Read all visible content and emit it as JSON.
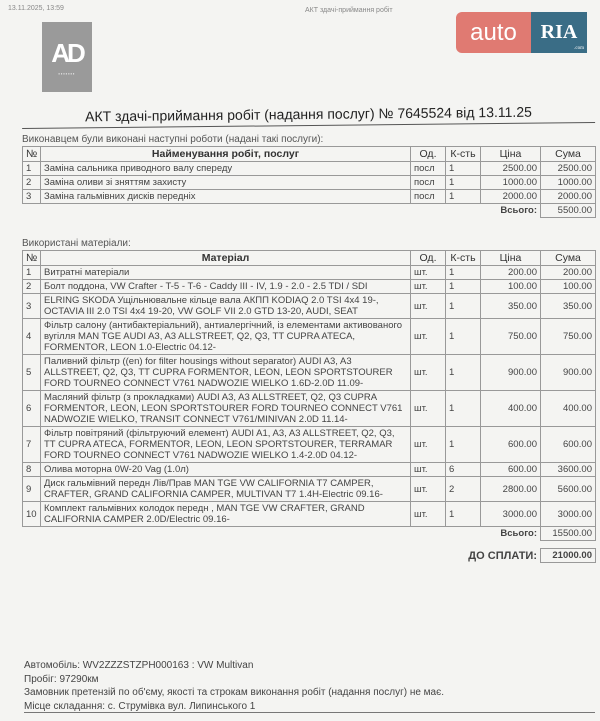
{
  "print_header": {
    "datetime": "13.11.2025, 13:59",
    "doc_name": "АКТ здачі-приймання робіт"
  },
  "logos": {
    "company": "AD",
    "autoria_left": "auto",
    "autoria_right": "RIA",
    "autoria_domain": ".com",
    "brand_colors": {
      "auto": "#e07a72",
      "ria": "#3a6d86"
    }
  },
  "title": "АКТ здачі-приймання робіт (надання послуг) № 7645524 від 13.11.25",
  "works": {
    "caption": "Виконавцем були виконані наступні роботи (надані такі послуги):",
    "headers": [
      "№",
      "Найменування робіт, послуг",
      "Од.",
      "К-сть",
      "Ціна",
      "Сума"
    ],
    "rows": [
      [
        "1",
        "Заміна сальника приводного валу спереду",
        "посл",
        "1",
        "2500.00",
        "2500.00"
      ],
      [
        "2",
        "Заміна оливи зі зняттям захисту",
        "посл",
        "1",
        "1000.00",
        "1000.00"
      ],
      [
        "3",
        "Заміна гальмівних дисків передніх",
        "посл",
        "1",
        "2000.00",
        "2000.00"
      ]
    ],
    "total_label": "Всього:",
    "total": "5500.00"
  },
  "materials": {
    "caption": "Використані матеріали:",
    "headers": [
      "№",
      "Матеріал",
      "Од.",
      "К-сть",
      "Ціна",
      "Сума"
    ],
    "rows": [
      [
        "1",
        "Витратні матеріали",
        "шт.",
        "1",
        "200.00",
        "200.00"
      ],
      [
        "2",
        "Болт поддона, VW Crafter - T-5 - T-6 - Caddy III - IV, 1.9 - 2.0 - 2.5 TDI / SDI",
        "шт.",
        "1",
        "100.00",
        "100.00"
      ],
      [
        "3",
        "ELRING SKODA Ущільнювальне кільце вала АКПП KODIAQ 2.0 TSI 4x4 19-, OCTAVIA III 2.0 TSI 4x4 19-20, VW GOLF VII 2.0 GTD 13-20, AUDI, SEAT",
        "шт.",
        "1",
        "350.00",
        "350.00"
      ],
      [
        "4",
        "Фільтр салону (антибактеріальний), антиалергічний, із елементами активованого вугілля MAN TGE AUDI A3, A3 ALLSTREET, Q2, Q3, TT CUPRA ATECA, FORMENTOR, LEON 1.0-Electric 04.12-",
        "шт.",
        "1",
        "750.00",
        "750.00"
      ],
      [
        "5",
        "Паливний фільтр ((en) for filter housings without separator) AUDI A3, A3 ALLSTREET, Q2, Q3, TT CUPRA FORMENTOR, LEON, LEON SPORTSTOURER FORD TOURNEO CONNECT V761 NADWOZIE WIELKO 1.6D-2.0D 11.09-",
        "шт.",
        "1",
        "900.00",
        "900.00"
      ],
      [
        "6",
        "Масляний фільтр (з прокладками) AUDI A3, A3 ALLSTREET, Q2, Q3 CUPRA FORMENTOR, LEON, LEON SPORTSTOURER FORD TOURNEO CONNECT V761 NADWOZIE WIELKO, TRANSIT CONNECT V761/MINIVAN 2.0D 11.14-",
        "шт.",
        "1",
        "400.00",
        "400.00"
      ],
      [
        "7",
        "Фільтр повітряний (фільтруючий елемент) AUDI A1, A3, A3 ALLSTREET, Q2, Q3, TT CUPRA ATECA, FORMENTOR, LEON, LEON SPORTSTOURER, TERRAMAR FORD TOURNEO CONNECT V761 NADWOZIE WIELKO 1.4-2.0D 04.12-",
        "шт.",
        "1",
        "600.00",
        "600.00"
      ],
      [
        "8",
        "Олива моторна 0W-20 Vag (1.0л)",
        "шт.",
        "6",
        "600.00",
        "3600.00"
      ],
      [
        "9",
        "Диск гальмівний передн Лів/Прав MAN TGE VW CALIFORNIA T7 CAMPER, CRAFTER, GRAND CALIFORNIA CAMPER, MULTIVAN T7 1.4H-Electric 09.16-",
        "шт.",
        "2",
        "2800.00",
        "5600.00"
      ],
      [
        "10",
        "Комплект гальмівних колодок передн , MAN TGE VW CRAFTER, GRAND CALIFORNIA CAMPER 2.0D/Electric 09.16-",
        "шт.",
        "1",
        "3000.00",
        "3000.00"
      ]
    ],
    "total_label": "Всього:",
    "total": "15500.00"
  },
  "to_pay": {
    "label": "ДО СПЛАТИ:",
    "value": "21000.00"
  },
  "footer": {
    "car": "Автомобіль:  WV2ZZZSTZPH000163 : VW Multivan",
    "mileage": "Пробіг: 97290км",
    "no_claims": "Замовник претензій по об'єму, якості та строкам виконання робіт (надання послуг) не має.",
    "place": "Місце складання:  с. Струмівка вул. Липинського 1"
  }
}
